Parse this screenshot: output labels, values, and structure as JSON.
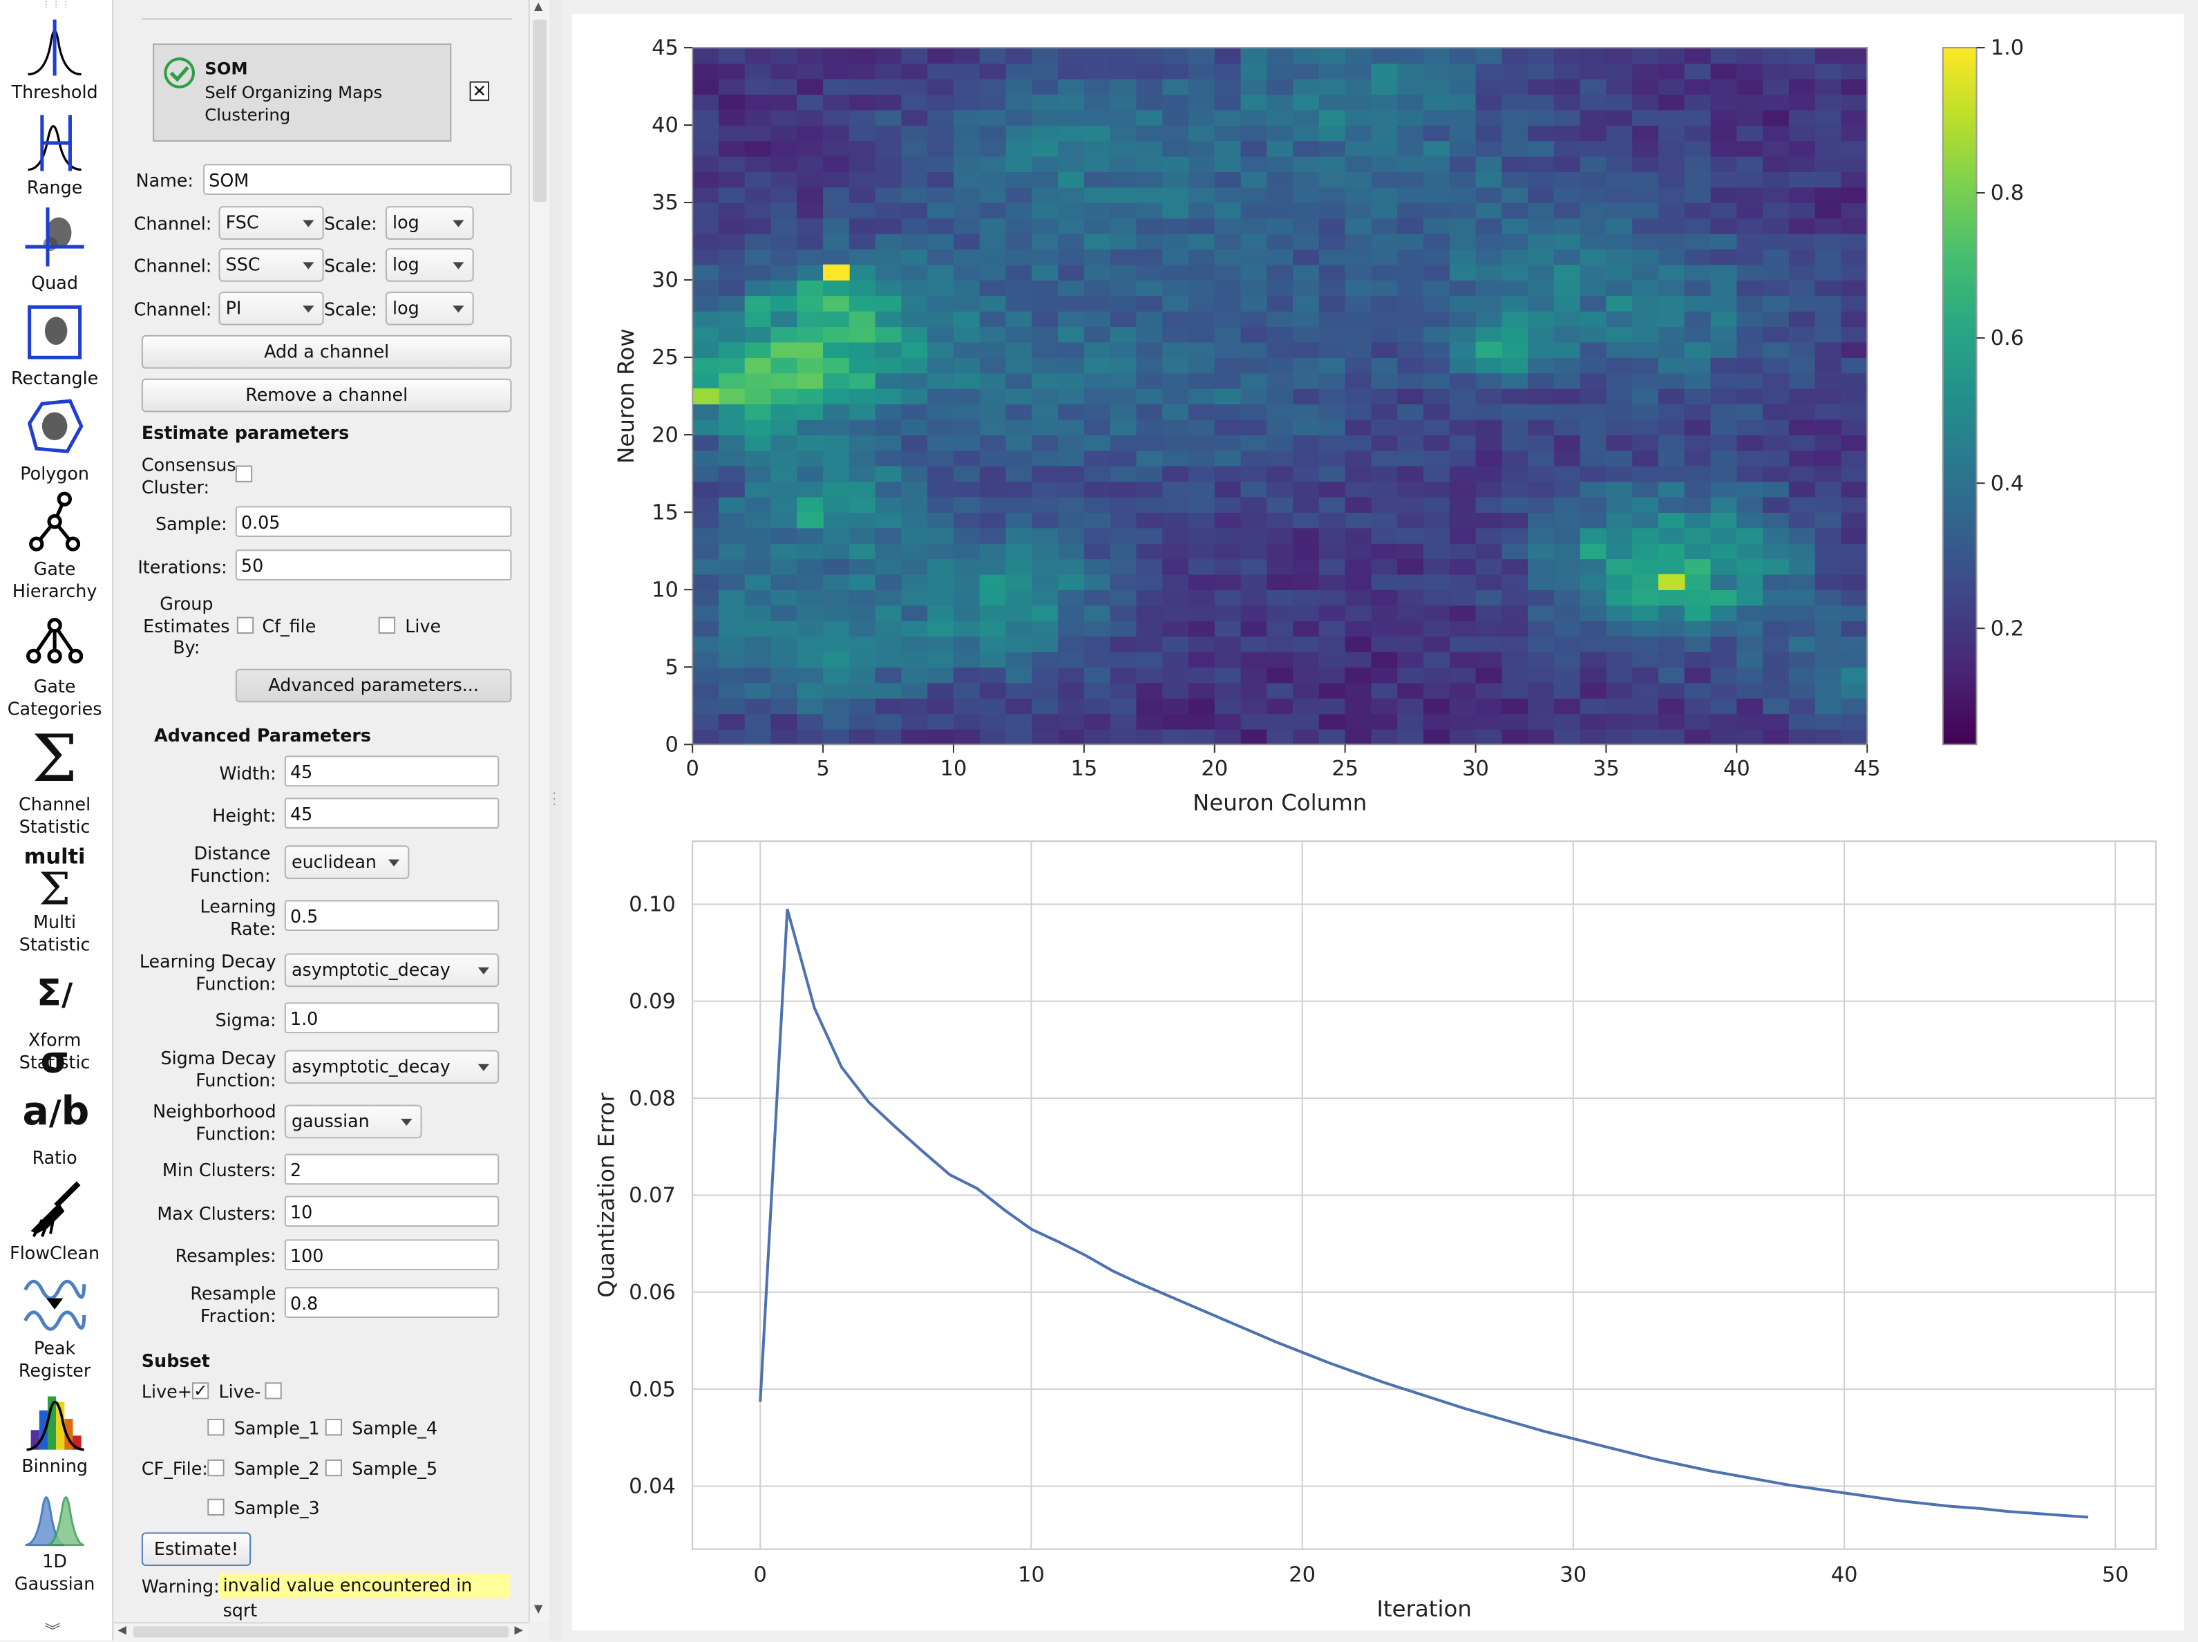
{
  "tools": [
    {
      "label": "Threshold",
      "icon": "threshold-icon"
    },
    {
      "label": "Range",
      "icon": "range-icon"
    },
    {
      "label": "Quad",
      "icon": "quad-icon"
    },
    {
      "label": "Rectangle",
      "icon": "rectangle-icon"
    },
    {
      "label": "Polygon",
      "icon": "polygon-icon"
    },
    {
      "label": "Gate\nHierarchy",
      "icon": "gate-hierarchy-icon"
    },
    {
      "label": "Gate\nCategories",
      "icon": "gate-categories-icon"
    },
    {
      "label": "Channel\nStatistic",
      "icon": "sigma-icon"
    },
    {
      "label": "Multi\nStatistic",
      "icon": "multi-sigma-icon"
    },
    {
      "label": "Xform\nStatistic",
      "icon": "xform-sigma-icon"
    },
    {
      "label": "Ratio",
      "icon": "ratio-icon"
    },
    {
      "label": "FlowClean",
      "icon": "broom-icon"
    },
    {
      "label": "Peak\nRegister",
      "icon": "peak-register-icon"
    },
    {
      "label": "Binning",
      "icon": "binning-icon"
    },
    {
      "label": "1D\nGaussian",
      "icon": "gaussian-icon"
    }
  ],
  "multi_text": "multi",
  "card": {
    "title": "SOM",
    "subtitle": "Self Organizing Maps\nClustering",
    "close": "✕"
  },
  "form": {
    "name_label": "Name:",
    "name_value": "SOM",
    "channel_label": "Channel:",
    "scale_label": "Scale:",
    "channels": [
      {
        "channel": "FSC",
        "scale": "log"
      },
      {
        "channel": "SSC",
        "scale": "log"
      },
      {
        "channel": "PI",
        "scale": "log"
      }
    ],
    "add_channel": "Add a channel",
    "remove_channel": "Remove a channel",
    "estimate_header": "Estimate parameters",
    "consensus_label": "Consensus\nCluster:",
    "sample_label": "Sample:",
    "sample_value": "0.05",
    "iterations_label": "Iterations:",
    "iterations_value": "50",
    "group_label": "Group\nEstimates\nBy:",
    "group_cf_file": "Cf_file",
    "group_live": "Live",
    "advanced_button": "Advanced parameters...",
    "advanced_header": "Advanced Parameters",
    "width_label": "Width:",
    "width_value": "45",
    "height_label": "Height:",
    "height_value": "45",
    "distance_label": "Distance\nFunction:",
    "distance_value": "euclidean",
    "learning_rate_label": "Learning\nRate:",
    "learning_rate_value": "0.5",
    "learning_decay_label": "Learning Decay\nFunction:",
    "learning_decay_value": "asymptotic_decay",
    "sigma_label": "Sigma:",
    "sigma_value": "1.0",
    "sigma_decay_label": "Sigma Decay\nFunction:",
    "sigma_decay_value": "asymptotic_decay",
    "neighborhood_label": "Neighborhood\nFunction:",
    "neighborhood_value": "gaussian",
    "min_clusters_label": "Min Clusters:",
    "min_clusters_value": "2",
    "max_clusters_label": "Max Clusters:",
    "max_clusters_value": "10",
    "resamples_label": "Resamples:",
    "resamples_value": "100",
    "resample_fraction_label": "Resample\nFraction:",
    "resample_fraction_value": "0.8",
    "subset_header": "Subset",
    "live_plus": "Live+",
    "live_minus": "Live-",
    "live_plus_checked": true,
    "live_minus_checked": false,
    "cf_file_label": "CF_File:",
    "samples": [
      "Sample_1",
      "Sample_4",
      "Sample_2",
      "Sample_5",
      "Sample_3"
    ],
    "estimate_button": "Estimate!",
    "warning_label": "Warning:",
    "warning_text": "invalid value encountered in sqrt"
  },
  "colors": {
    "accent_check": "#2e9e44",
    "warning_bg": "#ffff99",
    "line": "#4c72b0"
  },
  "chart_data": [
    {
      "type": "heatmap",
      "xlabel": "Neuron Column",
      "ylabel": "Neuron Row",
      "xlim": [
        0,
        45
      ],
      "ylim": [
        0,
        45
      ],
      "xticks": [
        0,
        5,
        10,
        15,
        20,
        25,
        30,
        35,
        40,
        45
      ],
      "yticks": [
        0,
        5,
        10,
        15,
        20,
        25,
        30,
        35,
        40,
        45
      ],
      "grid_size": [
        45,
        45
      ],
      "colormap": "viridis",
      "colorbar": {
        "range": [
          0.04,
          1.0
        ],
        "ticks": [
          0.2,
          0.4,
          0.6,
          0.8,
          1.0
        ],
        "tick_labels": [
          "0.2",
          "0.4",
          "0.6",
          "0.8",
          "1.0"
        ]
      },
      "highlights": [
        {
          "col": 5,
          "row": 30,
          "value": 1.0
        },
        {
          "col": 0,
          "row": 22,
          "value": 0.85
        },
        {
          "col": 37,
          "row": 10,
          "value": 0.9
        },
        {
          "col": 30,
          "row": 25,
          "value": 0.6
        },
        {
          "col": 4,
          "row": 14,
          "value": 0.6
        }
      ]
    },
    {
      "type": "line",
      "xlabel": "Iteration",
      "ylabel": "Quantization Error",
      "xlim": [
        -2.5,
        51.5
      ],
      "ylim": [
        0.0335,
        0.1065
      ],
      "xticks": [
        0,
        10,
        20,
        30,
        40,
        50
      ],
      "yticks": [
        0.04,
        0.05,
        0.06,
        0.07,
        0.08,
        0.09,
        0.1
      ],
      "ytick_labels": [
        "0.04",
        "0.05",
        "0.06",
        "0.07",
        "0.08",
        "0.09",
        "0.10"
      ],
      "grid": true,
      "x": [
        0,
        1,
        2,
        3,
        4,
        5,
        6,
        7,
        8,
        9,
        10,
        11,
        12,
        13,
        14,
        15,
        16,
        17,
        18,
        19,
        20,
        21,
        22,
        23,
        24,
        25,
        26,
        27,
        28,
        29,
        30,
        31,
        32,
        33,
        34,
        35,
        36,
        37,
        38,
        39,
        40,
        41,
        42,
        43,
        44,
        45,
        46,
        47,
        48,
        49
      ],
      "y": [
        0.0487,
        0.0995,
        0.0893,
        0.0832,
        0.0796,
        0.077,
        0.0745,
        0.0721,
        0.0707,
        0.0685,
        0.0665,
        0.0652,
        0.0638,
        0.0622,
        0.0609,
        0.0597,
        0.0585,
        0.0573,
        0.0561,
        0.0549,
        0.0538,
        0.0527,
        0.0517,
        0.0507,
        0.0498,
        0.0489,
        0.048,
        0.0472,
        0.0464,
        0.0456,
        0.0449,
        0.0442,
        0.0435,
        0.0428,
        0.0422,
        0.0416,
        0.0411,
        0.0406,
        0.0401,
        0.0397,
        0.0393,
        0.0389,
        0.0385,
        0.0382,
        0.0379,
        0.0377,
        0.0374,
        0.0372,
        0.037,
        0.0368
      ]
    }
  ]
}
